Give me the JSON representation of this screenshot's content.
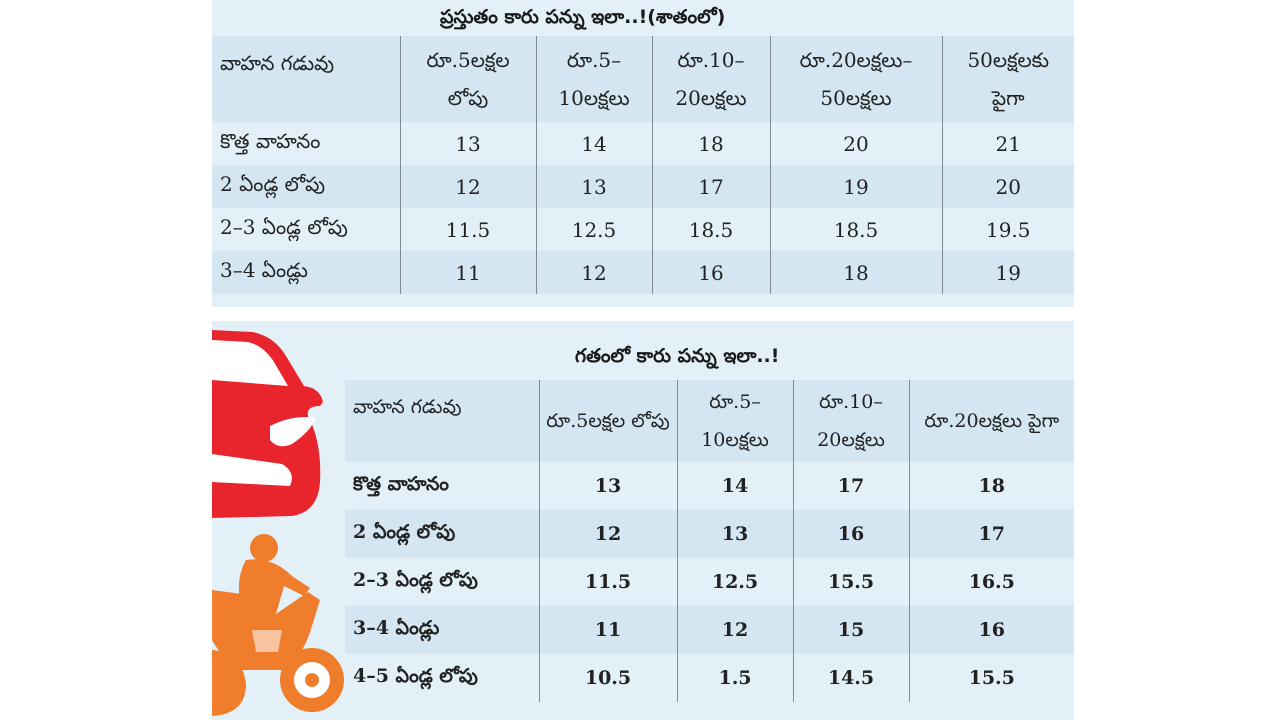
{
  "current": {
    "title": "ప్రస్తుతం కారు పన్ను ఇలా..!(శాతంలో)",
    "headers": [
      "వాహన గడువు",
      "రూ.5లక్షల లోపు",
      "రూ.5–10లక్షలు",
      "రూ.10–20లక్షలు",
      "రూ.20లక్షలు–50లక్షలు",
      "50లక్షలకు పైగా"
    ],
    "rows": [
      [
        "కొత్త వాహనం",
        "13",
        "14",
        "18",
        "20",
        "21"
      ],
      [
        "2 ఏండ్ల లోపు",
        "12",
        "13",
        "17",
        "19",
        "20"
      ],
      [
        "2–3 ఏండ్ల లోపు",
        "11.5",
        "12.5",
        "18.5",
        "18.5",
        "19.5"
      ],
      [
        "3–4 ఏండ్లు",
        "11",
        "12",
        "16",
        "18",
        "19"
      ]
    ]
  },
  "previous": {
    "title": "గతంలో కారు పన్ను ఇలా..!",
    "headers": [
      "వాహన గడువు",
      "రూ.5లక్షల లోపు",
      "రూ.5–10లక్షలు",
      "రూ.10–20లక్షలు",
      "రూ.20లక్షలు పైగా"
    ],
    "rows": [
      [
        "కొత్త వాహనం",
        "13",
        "14",
        "17",
        "18"
      ],
      [
        "2 ఏండ్ల లోపు",
        "12",
        "13",
        "16",
        "17"
      ],
      [
        "2–3 ఏండ్ల లోపు",
        "11.5",
        "12.5",
        "15.5",
        "16.5"
      ],
      [
        "3–4 ఏండ్లు",
        "11",
        "12",
        "15",
        "16"
      ],
      [
        "4–5 ఏండ్ల లోపు",
        "10.5",
        "1.5",
        "14.5",
        "15.5"
      ]
    ]
  },
  "colors": {
    "panel": "#e3f0f8",
    "band": "#d3e6f2",
    "car": "#e8242c",
    "bike": "#ef7d2b"
  },
  "illustrations": [
    "car-illustration",
    "motorcycle-rider-illustration"
  ]
}
